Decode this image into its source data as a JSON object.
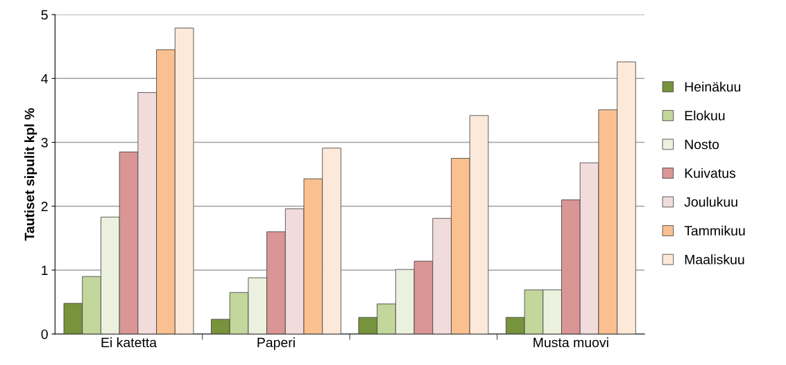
{
  "chart_data": {
    "type": "bar",
    "ylabel": "Tautiset sipulit kpl %",
    "categories": [
      "Ei katetta",
      "Paperi",
      null,
      "Musta muovi"
    ],
    "series": [
      {
        "name": "Heinäkuu",
        "color": "#77933c",
        "values": [
          0.48,
          0.23,
          0.26,
          0.26
        ]
      },
      {
        "name": "Elokuu",
        "color": "#c3d69b",
        "values": [
          0.9,
          0.65,
          0.47,
          0.69
        ]
      },
      {
        "name": "Nosto",
        "color": "#ebf1de",
        "values": [
          1.83,
          0.88,
          1.01,
          0.69
        ]
      },
      {
        "name": "Kuivatus",
        "color": "#d99694",
        "values": [
          2.85,
          1.6,
          1.14,
          2.1
        ]
      },
      {
        "name": "Joulukuu",
        "color": "#f2dcdb",
        "values": [
          3.78,
          1.96,
          1.81,
          2.68
        ]
      },
      {
        "name": "Tammikuu",
        "color": "#fac090",
        "values": [
          4.45,
          2.43,
          2.75,
          3.51
        ]
      },
      {
        "name": "Maaliskuu",
        "color": "#fde9d9",
        "values": [
          4.79,
          2.91,
          3.42,
          4.26
        ]
      }
    ],
    "ylim": [
      0,
      5
    ],
    "yticks": [
      0,
      1,
      2,
      3,
      4,
      5
    ],
    "grid": "y",
    "legend": "right"
  }
}
